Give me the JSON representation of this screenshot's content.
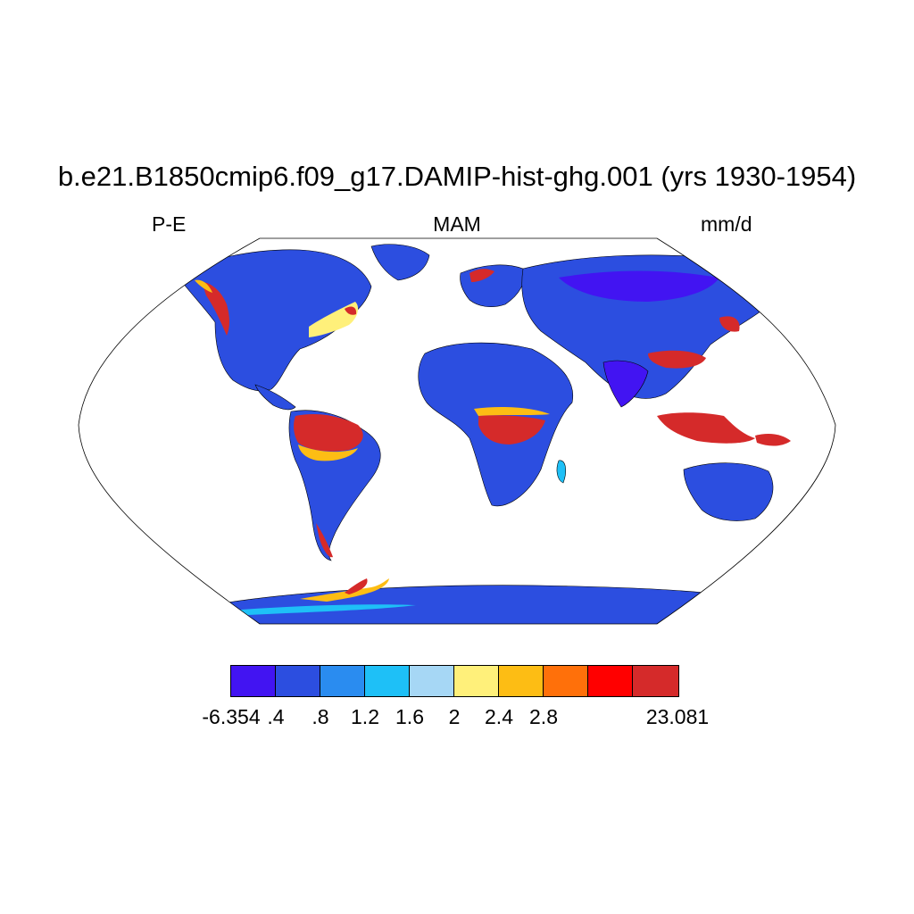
{
  "title": "b.e21.B1850cmip6.f09_g17.DAMIP-hist-ghg.001 (yrs 1930-1954)",
  "left_string": "P-E",
  "center_string": "MAM",
  "right_string": "mm/d",
  "colorbar": {
    "colors": [
      "#4214f2",
      "#2c4ee0",
      "#2a8cf0",
      "#1ec0f7",
      "#a6d7f5",
      "#fff07a",
      "#fdbd14",
      "#ff700a",
      "#ff0000",
      "#d52a2a"
    ],
    "labels": [
      "-6.354",
      ".4",
      ".8",
      "1.2",
      "1.6",
      "2",
      "2.4",
      "2.8",
      "23.081"
    ]
  },
  "map": {
    "projection": "Robinson",
    "land_base_color": "#2c4ee0",
    "wet_region_color": "#d52a2a"
  }
}
